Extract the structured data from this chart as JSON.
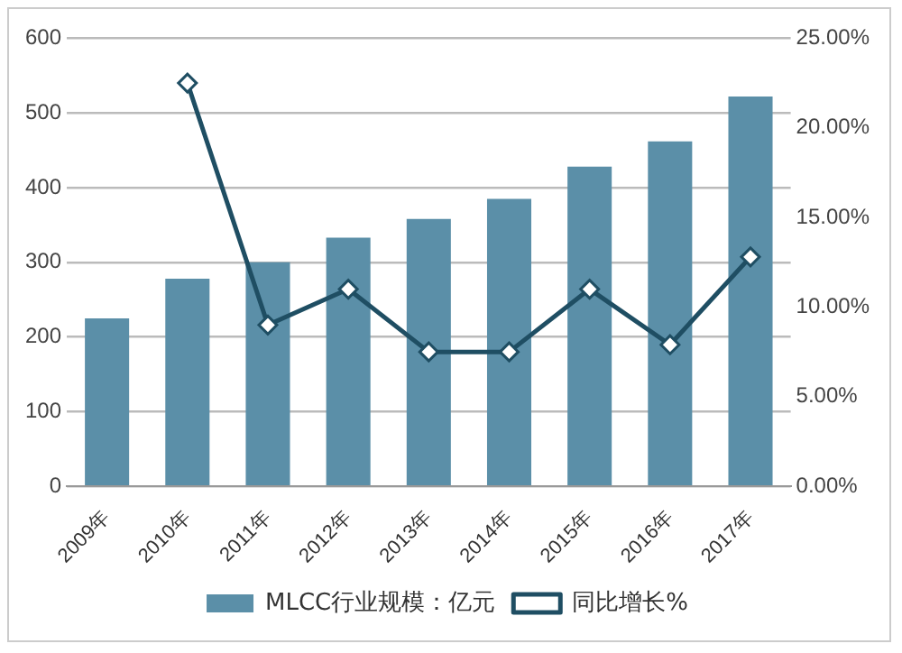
{
  "chart_data": {
    "type": "bar",
    "categories": [
      "2009年",
      "2010年",
      "2011年",
      "2012年",
      "2013年",
      "2014年",
      "2015年",
      "2016年",
      "2017年"
    ],
    "series": [
      {
        "name": "MLCC行业规模：亿元",
        "color": "#5b8fa8",
        "values": [
          225,
          278,
          300,
          333,
          358,
          385,
          428,
          462,
          522
        ]
      },
      {
        "name": "同比增长%",
        "type": "line",
        "axis": "y2",
        "color": "#1f4e63",
        "marker": "diamond",
        "values": [
          null,
          22.5,
          9.0,
          11.0,
          7.5,
          7.5,
          11.0,
          7.9,
          12.8
        ]
      }
    ],
    "ylim": [
      0,
      600
    ],
    "yticks": [
      0,
      100,
      200,
      300,
      400,
      500,
      600
    ],
    "y2lim": [
      0,
      25
    ],
    "y2ticks": [
      {
        "value": 0,
        "label": "0.00%"
      },
      {
        "value": 5,
        "label": "5.00%"
      },
      {
        "value": 10,
        "label": "10.00%"
      },
      {
        "value": 15,
        "label": "15.00%"
      },
      {
        "value": 20,
        "label": "20.00%"
      },
      {
        "value": 25,
        "label": "25.00%"
      }
    ],
    "grid": "y",
    "legend": "bottom"
  }
}
